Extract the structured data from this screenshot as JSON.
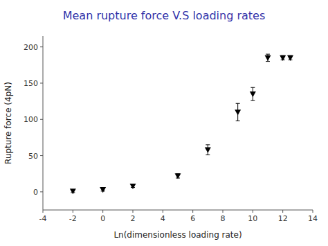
{
  "chart_data": {
    "type": "scatter",
    "title": "Mean rupture force V.S loading rates",
    "title_color": "#3333aa",
    "x_label": "Ln(dimensionless loading rate)",
    "y_label": "Rupture force (4pN)",
    "x": [
      -2,
      0,
      2,
      5,
      7,
      9,
      10,
      11,
      12,
      12.5
    ],
    "values": [
      1,
      3,
      8,
      22,
      58,
      110,
      135,
      185,
      185,
      185
    ],
    "errors": [
      2,
      2,
      2,
      3,
      7,
      12,
      9,
      5,
      3,
      3
    ],
    "xlim": [
      -4,
      14
    ],
    "ylim": [
      -25,
      215
    ],
    "xticks": [
      -4,
      -2,
      0,
      2,
      4,
      6,
      8,
      10,
      12,
      14
    ],
    "yticks": [
      0,
      50,
      100,
      150,
      200
    ],
    "marker": "triangle-down",
    "color": "black",
    "grid": false
  }
}
